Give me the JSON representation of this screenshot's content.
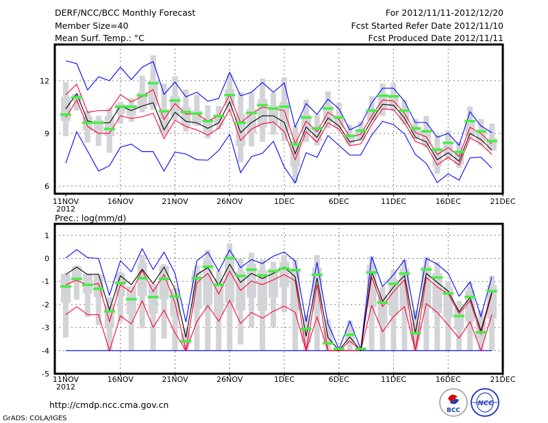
{
  "header": {
    "left": [
      "DERF/NCC/BCC Monthly Forecast",
      "Member Size=40",
      "Mean Surf. Temp.: °C"
    ],
    "right": [
      "For 2012/11/11-2012/12/20",
      "Fcst Started Refer Date 2012/11/10",
      "Fcst Produced Date 2012/11/11"
    ]
  },
  "footer": {
    "url": "http://cmdp.ncc.cma.gov.cn",
    "credit": "GrADS: COLA/IGES",
    "logo_left": "BCC",
    "logo_right": "NCC"
  },
  "colors": {
    "max_min": "#0000ff",
    "spread": "#ff0033",
    "mean": "#000000",
    "obs": "#44ee44",
    "box": "#d3d4d8"
  },
  "chart_data": [
    {
      "type": "line",
      "title": "Mean Surf. Temp.: °C",
      "x_start_day_index": 0,
      "xticks": [
        "11NOV",
        "16NOV",
        "21NOV",
        "26NOV",
        "1DEC",
        "6DEC",
        "11DEC",
        "16DEC",
        "21DEC"
      ],
      "xtick_year": "2012",
      "yticks": [
        "12",
        "9",
        "6"
      ],
      "ytick_values": [
        12,
        9,
        6
      ],
      "ylim": [
        5.57,
        14.06
      ],
      "grid": true,
      "series": [
        {
          "name": "max",
          "values": [
            13.13,
            12.97,
            11.47,
            12.22,
            12.0,
            12.77,
            12.06,
            12.77,
            13.09,
            11.22,
            11.92,
            11.08,
            11.34,
            10.83,
            10.99,
            12.48,
            11.14,
            11.34,
            11.9,
            11.34,
            11.87,
            9.36,
            10.7,
            10.08,
            10.95,
            10.4,
            9.2,
            9.5,
            10.73,
            11.57,
            11.57,
            10.83,
            9.62,
            9.62,
            8.78,
            9.0,
            8.32,
            10.23,
            9.43,
            9.04
          ]
        },
        {
          "name": "min",
          "values": [
            7.31,
            9.1,
            8.0,
            6.86,
            7.16,
            8.22,
            8.39,
            7.96,
            7.96,
            6.86,
            7.94,
            7.83,
            7.5,
            7.48,
            8.03,
            8.94,
            6.77,
            7.68,
            7.87,
            8.55,
            7.09,
            6.18,
            7.9,
            7.64,
            8.88,
            8.32,
            7.77,
            7.77,
            8.9,
            9.69,
            9.5,
            8.97,
            7.8,
            7.29,
            6.21,
            6.7,
            6.34,
            7.61,
            7.65,
            7.03
          ]
        },
        {
          "name": "upper",
          "values": [
            11.2,
            11.8,
            10.2,
            10.3,
            10.3,
            11.2,
            10.8,
            11.1,
            11.5,
            9.8,
            10.7,
            10.1,
            10.1,
            9.7,
            10.0,
            11.2,
            9.6,
            10.1,
            10.5,
            10.4,
            10.3,
            8.4,
            9.7,
            9.1,
            10.2,
            9.8,
            8.8,
            8.95,
            10.0,
            10.9,
            10.85,
            10.15,
            9.05,
            8.8,
            7.8,
            8.2,
            7.7,
            9.35,
            9.0,
            8.4
          ]
        },
        {
          "name": "lower",
          "values": [
            9.9,
            10.9,
            9.4,
            9.0,
            9.0,
            10.0,
            9.85,
            9.95,
            10.15,
            8.7,
            9.75,
            9.4,
            9.2,
            8.9,
            9.3,
            10.35,
            8.6,
            9.25,
            9.55,
            9.65,
            9.1,
            7.5,
            9.1,
            8.5,
            9.6,
            9.25,
            8.3,
            8.4,
            9.5,
            10.4,
            10.35,
            9.6,
            8.55,
            8.3,
            7.2,
            7.65,
            7.2,
            8.75,
            8.4,
            7.8
          ]
        },
        {
          "name": "mean",
          "values": [
            10.4,
            11.27,
            9.71,
            9.6,
            9.6,
            10.56,
            10.3,
            10.56,
            10.75,
            9.2,
            10.2,
            9.69,
            9.6,
            9.29,
            9.6,
            10.8,
            9.04,
            9.62,
            10.0,
            10.0,
            9.62,
            7.84,
            9.36,
            8.78,
            9.88,
            9.43,
            8.52,
            8.65,
            9.75,
            10.66,
            10.6,
            9.88,
            8.78,
            8.52,
            7.5,
            7.9,
            7.42,
            9.0,
            8.65,
            8.06
          ]
        },
        {
          "name": "obs",
          "values": [
            10.08,
            11.05,
            9.62,
            9.62,
            9.26,
            10.53,
            10.53,
            11.17,
            11.87,
            10.27,
            10.88,
            10.23,
            10.14,
            9.71,
            10.0,
            11.19,
            9.61,
            10.18,
            10.62,
            10.43,
            10.53,
            8.39,
            9.92,
            9.3,
            10.43,
            9.92,
            8.87,
            9.17,
            10.31,
            11.16,
            11.12,
            10.31,
            9.3,
            9.13,
            8.09,
            8.48,
            7.96,
            9.71,
            9.13,
            8.58
          ]
        }
      ],
      "box_high": [
        11.92,
        11.2,
        10.27,
        10.0,
        10.47,
        10.8,
        11.0,
        12.29,
        13.45,
        11.83,
        12.25,
        11.5,
        11.18,
        10.6,
        10.56,
        12.4,
        11.35,
        11.31,
        12.12,
        11.31,
        12.18,
        9.43,
        10.92,
        10.08,
        11.4,
        10.75,
        9.5,
        9.69,
        11.12,
        11.83,
        11.86,
        10.92,
        9.82,
        10.0,
        8.92,
        9.17,
        8.52,
        10.53,
        9.82,
        9.56
      ],
      "box_low": [
        8.84,
        10.3,
        8.48,
        8.29,
        7.9,
        9.56,
        9.66,
        10.2,
        10.34,
        8.88,
        9.75,
        9.1,
        9.43,
        8.71,
        9.23,
        10.27,
        7.35,
        8.26,
        8.52,
        8.92,
        8.55,
        6.18,
        8.52,
        8.32,
        9.3,
        9.17,
        8.32,
        8.65,
        9.75,
        10.0,
        10.27,
        9.5,
        8.65,
        8.19,
        6.7,
        7.48,
        7.03,
        8.71,
        8.32,
        8.0
      ]
    },
    {
      "type": "line",
      "title": "Prec.: log(mm/d)",
      "xticks": [
        "11NOV",
        "16NOV",
        "21NOV",
        "26NOV",
        "1DEC",
        "6DEC",
        "11DEC",
        "16DEC",
        "21DEC"
      ],
      "xtick_year": "2012",
      "yticks": [
        "1",
        "0",
        "-1",
        "-2",
        "-3",
        "-4",
        "-5"
      ],
      "ytick_values": [
        1,
        0,
        -1,
        -2,
        -3,
        -4,
        -5
      ],
      "ylim": [
        -5,
        1.5
      ],
      "floor": -4,
      "grid": true,
      "series": [
        {
          "name": "max",
          "values": [
            0.02,
            0.38,
            0.03,
            0,
            -1.59,
            -0.1,
            -0.58,
            0.42,
            -0.48,
            0.27,
            -0.65,
            -2.76,
            -0.1,
            0.27,
            -0.55,
            0.37,
            -0.4,
            -0.05,
            -0.22,
            0.1,
            0.28,
            -0.12,
            -2.74,
            -0.17,
            -2.84,
            -3.93,
            -2.72,
            -3.93,
            0.07,
            -1.22,
            -0.7,
            -0.07,
            -2.64,
            0,
            -0.25,
            -0.65,
            -1.64,
            -1.02,
            -2.52,
            -0.8
          ]
        },
        {
          "name": "upper",
          "values": [
            -1.14,
            -0.95,
            -1.16,
            -1.09,
            -2.74,
            -1.14,
            -1.47,
            -0.52,
            -1.44,
            -0.7,
            -1.94,
            -4,
            -1.06,
            -0.65,
            -1.54,
            -0.55,
            -1.39,
            -0.98,
            -1.14,
            -0.93,
            -0.7,
            -0.97,
            -4,
            -1.14,
            -4,
            -4,
            -3.58,
            -4,
            -0.8,
            -2.09,
            -1.44,
            -0.93,
            -4,
            -0.83,
            -1.24,
            -1.54,
            -2.39,
            -1.84,
            -3.28,
            -1.54
          ]
        },
        {
          "name": "lower",
          "values": [
            -2.44,
            -2.09,
            -2.44,
            -2.44,
            -4,
            -2.49,
            -2.84,
            -1.84,
            -2.99,
            -2.24,
            -3.23,
            -4,
            -2.74,
            -2.04,
            -2.72,
            -1.82,
            -2.82,
            -2.34,
            -2.59,
            -2.29,
            -2.07,
            -2.34,
            -4,
            -2.54,
            -4,
            -4,
            -4,
            -4,
            -2.04,
            -3.18,
            -2.52,
            -2.09,
            -4,
            -1.96,
            -2.34,
            -2.89,
            -3.46,
            -2.74,
            -4,
            -2.44
          ]
        },
        {
          "name": "mean",
          "values": [
            -0.7,
            -0.38,
            -0.7,
            -0.68,
            -2.24,
            -0.75,
            -1.14,
            -0.47,
            -1.09,
            -0.38,
            -1.34,
            -3.43,
            -0.7,
            -0.4,
            -1.16,
            -0.25,
            -1.04,
            -0.65,
            -0.87,
            -0.65,
            -0.38,
            -0.8,
            -3.38,
            -0.85,
            -3.43,
            -3.98,
            -3.41,
            -4,
            -0.57,
            -1.86,
            -1.24,
            -0.75,
            -3.23,
            -0.65,
            -1.04,
            -1.42,
            -2.31,
            -1.69,
            -3.13,
            -1.46
          ]
        },
        {
          "name": "obs",
          "values": [
            -1.21,
            -0.88,
            -1.14,
            -1.31,
            -2.29,
            -1.06,
            -1.76,
            -0.85,
            -1.67,
            -0.88,
            -1.64,
            -3.58,
            -0.85,
            -0.35,
            -1.14,
            0.02,
            -0.75,
            -0.48,
            -0.73,
            -0.55,
            -0.43,
            -0.5,
            -3.05,
            -0.7,
            -3.68,
            -3.91,
            -3.3,
            -3.91,
            -0.6,
            -1.91,
            -1.09,
            -0.65,
            -3.23,
            -0.47,
            -0.82,
            -1.51,
            -2.49,
            -1.66,
            -3.2,
            -1.41
          ]
        }
      ],
      "box_high": [
        -0.65,
        -0.3,
        -0.65,
        -0.75,
        -1.69,
        -0.57,
        -1.29,
        0.15,
        -1.14,
        -0.25,
        -1.29,
        -3.03,
        -0.3,
        0.37,
        -0.53,
        0.65,
        0,
        0.25,
        -0.05,
        -0.15,
        0.15,
        -0.05,
        -2.44,
        0.15,
        -2.64,
        -3.83,
        -2.69,
        -3.83,
        0.1,
        -1.24,
        -0.5,
        -0.05,
        -2.24,
        0.07,
        -0.15,
        -1.04,
        -1.84,
        -1.04,
        -2.24,
        -0.75
      ],
      "box_low": [
        -3.43,
        -1.79,
        -2.54,
        -2.89,
        -3.98,
        -2.74,
        -3.98,
        -3.03,
        -3.98,
        -3.48,
        -3.98,
        -4,
        -4,
        -4,
        -4,
        -4,
        -3.73,
        -2.99,
        -4,
        -2.99,
        -2.34,
        -4,
        -4,
        -4,
        -4,
        -4,
        -4,
        -4,
        -4,
        -4,
        -4,
        -4,
        -4,
        -4,
        -4,
        -4,
        -4,
        -4,
        -4,
        -4
      ]
    }
  ]
}
